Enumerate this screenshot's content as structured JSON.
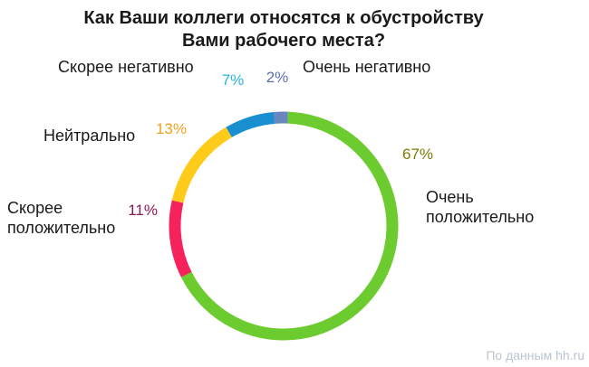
{
  "chart_data": {
    "type": "pie",
    "style": "donut",
    "title_lines": [
      "Как Ваши коллеги относятся к обустройству",
      "Вами рабочего места?"
    ],
    "slices": [
      {
        "label": "Очень негативно",
        "label_lines": [
          "Очень негативно"
        ],
        "value": 2,
        "display": "2%",
        "color": "#6a86bf",
        "pct_color": "#5a6fb3"
      },
      {
        "label": "Очень положительно",
        "label_lines": [
          "Очень",
          "положительно"
        ],
        "value": 67,
        "display": "67%",
        "color": "#6ccb2e",
        "pct_color": "#7a7a00"
      },
      {
        "label": "Скорее положительно",
        "label_lines": [
          "Скорее",
          "положительно"
        ],
        "value": 11,
        "display": "11%",
        "color": "#f5225b",
        "pct_color": "#8a1a57"
      },
      {
        "label": "Нейтрально",
        "label_lines": [
          "Нейтрально"
        ],
        "value": 13,
        "display": "13%",
        "color": "#ffcb1a",
        "pct_color": "#f0a020"
      },
      {
        "label": "Скорее негативно",
        "label_lines": [
          "Скорее негативно"
        ],
        "value": 7,
        "display": "7%",
        "color": "#1a8fd0",
        "pct_color": "#2ab0e0"
      }
    ],
    "legend": "none",
    "source": "По данным hh.ru"
  }
}
